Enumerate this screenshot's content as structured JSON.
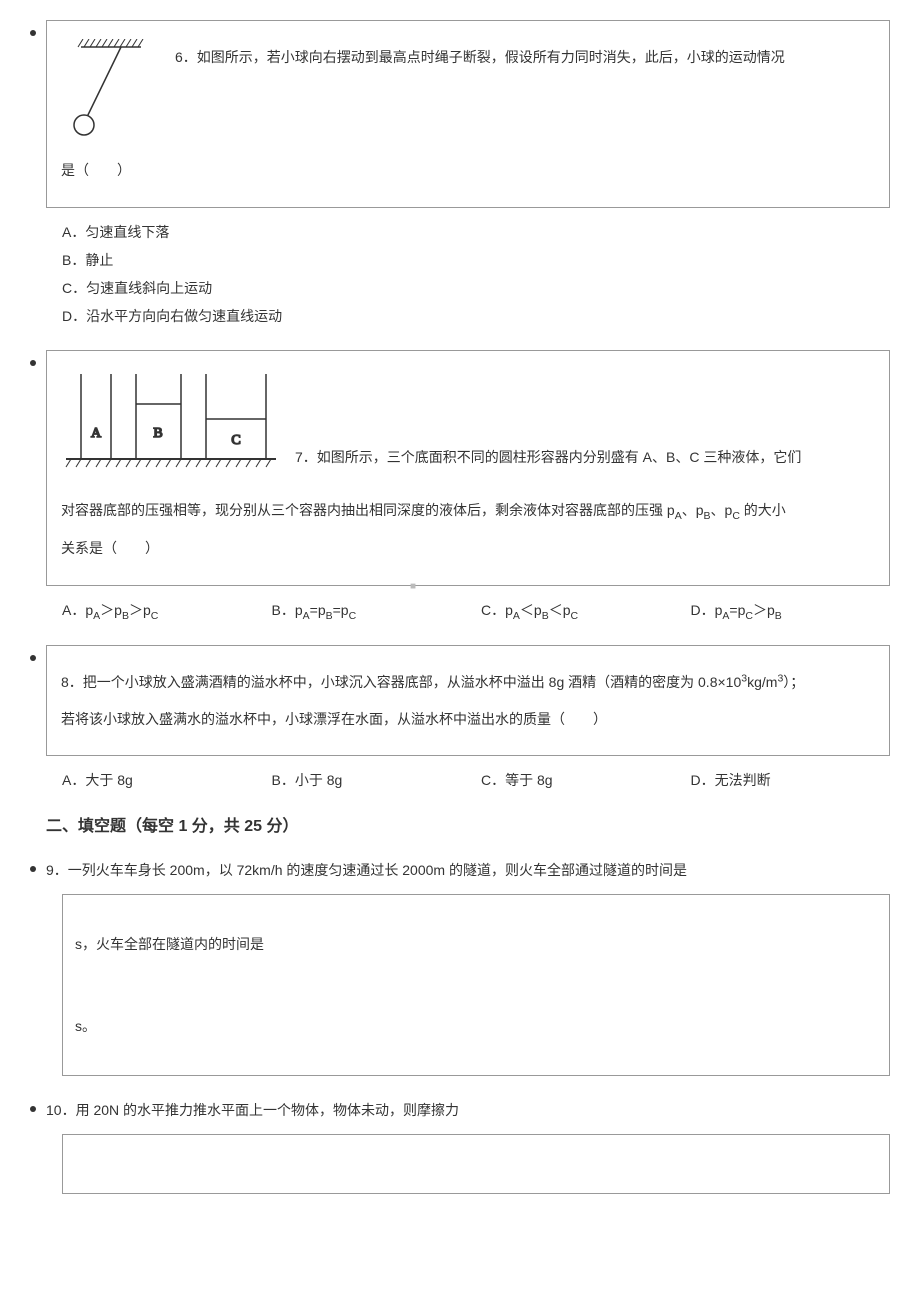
{
  "q6": {
    "text_part1": "6．如图所示，若小球向右摆动到最高点时绳子断裂，假设所有力同时消失，此后，小球的运动情况",
    "text_part2": "是（　　）",
    "options": {
      "A": "A．匀速直线下落",
      "B": "B．静止",
      "C": "C．匀速直线斜向上运动",
      "D": "D．沿水平方向向右做匀速直线运动"
    },
    "figure": {
      "hatch_color": "#333",
      "line_color": "#333",
      "ball_color": "#fff"
    }
  },
  "q7": {
    "text_part1": "7．如图所示，三个底面积不同的圆柱形容器内分别盛有 A、B、C 三种液体，它们",
    "text_part2_html": "对容器底部的压强相等，现分别从三个容器内抽出相同深度的液体后，剩余液体对容器底部的压强 p<span class=\"sub\">A</span>、p<span class=\"sub\">B</span>、p<span class=\"sub\">C</span> 的大小",
    "text_part3": "关系是（　　）",
    "options": {
      "A_html": "A．p<span class=\"sub\">A</span>＞p<span class=\"sub\">B</span>＞p<span class=\"sub\">C</span>",
      "B_html": "B．p<span class=\"sub\">A</span>=p<span class=\"sub\">B</span>=p<span class=\"sub\">C</span>",
      "C_html": "C．p<span class=\"sub\">A</span>＜p<span class=\"sub\">B</span>＜p<span class=\"sub\">C</span>",
      "D_html": "D．p<span class=\"sub\">A</span>=p<span class=\"sub\">C</span>＞p<span class=\"sub\">B</span>"
    },
    "figure": {
      "labels": [
        "A",
        "B",
        "C"
      ],
      "container_color": "#333",
      "ground_color": "#333"
    },
    "watermark": "■"
  },
  "q8": {
    "text_line1_html": "8．把一个小球放入盛满酒精的溢水杯中，小球沉入容器底部，从溢水杯中溢出 8g 酒精（酒精的密度为 0.8×10<span class=\"sup\">3</span>kg/m<span class=\"sup\">3</span>）；",
    "text_line2": "若将该小球放入盛满水的溢水杯中，小球漂浮在水面，从溢水杯中溢出水的质量（　　）",
    "options": {
      "A": "A．大于 8g",
      "B": "B．小于 8g",
      "C": "C．等于 8g",
      "D": "D．无法判断"
    }
  },
  "section2_title": "二、填空题（每空 1 分，共 25 分）",
  "q9": {
    "text": "9．一列火车车身长 200m，以 72km/h 的速度匀速通过长 2000m 的隧道，则火车全部通过隧道的时间是",
    "blank_text_1": "s，火车全部在隧道内的时间是",
    "blank_text_2": "s。"
  },
  "q10": {
    "text": "10．用 20N 的水平推力推水平面上一个物体，物体未动，则摩擦力"
  }
}
